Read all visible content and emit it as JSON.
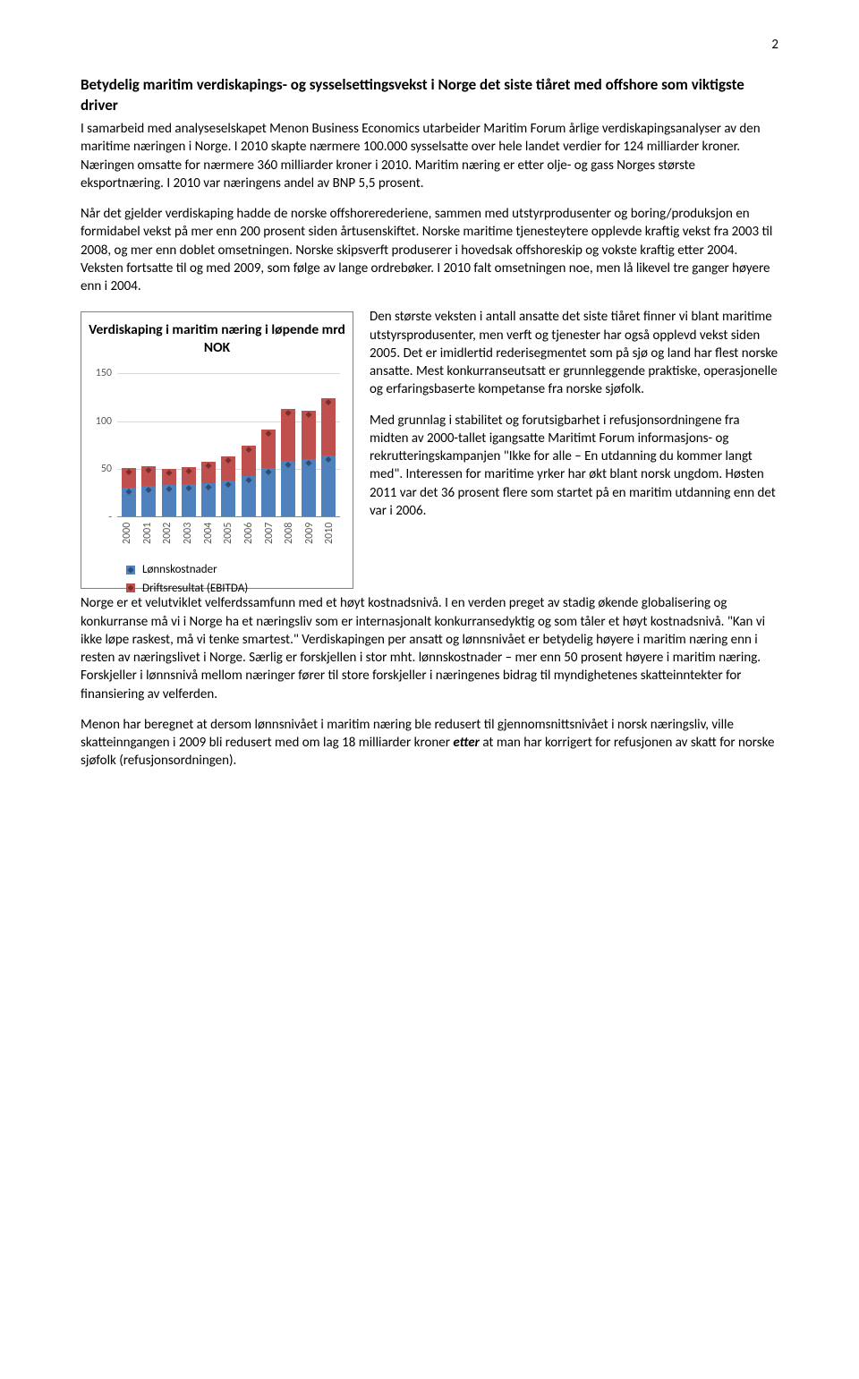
{
  "page_number": "2",
  "heading": "Betydelig maritim verdiskapings- og sysselsettingsvekst i Norge det siste tiåret med offshore som viktigste driver",
  "paragraphs": {
    "p1": "I samarbeid med analyseselskapet Menon Business Economics utarbeider Maritim Forum årlige verdiskapingsanalyser av den maritime næringen i Norge. I 2010 skapte nærmere 100.000 sysselsatte over hele landet verdier for 124 milliarder kroner. Næringen omsatte for nærmere 360 milliarder kroner i 2010. Maritim næring er etter olje- og gass Norges største eksportnæring. I 2010 var næringens andel av BNP 5,5 prosent.",
    "p2": "Når det gjelder verdiskaping hadde de norske offshorerederiene, sammen med utstyrprodusenter og boring/produksjon en formidabel vekst på mer enn 200 prosent siden årtusenskiftet. Norske maritime tjenesteytere opplevde kraftig vekst fra 2003 til 2008, og mer enn doblet omsetningen. Norske skipsverft produserer i hovedsak offshoreskip og vokste kraftig etter 2004. Veksten fortsatte til og med 2009, som følge av lange ordrebøker. I 2010 falt omsetningen noe, men lå likevel tre ganger høyere enn i 2004.",
    "p3a": "Den største veksten i antall ansatte det siste tiåret finner vi blant maritime utstyrsprodusenter, men verft og tjenester har også opplevd vekst siden 2005. Det er imidlertid rederisegmentet som på sjø og land har flest norske ansatte. Mest konkurranseutsatt er grunnleggende praktiske, operasjonelle og erfaringsbaserte kompetanse fra norske sjøfolk.",
    "p3b_part1": "Med grunnlag i stabilitet og forutsigbarhet i refusjonsordningene fra midten av 2000-tallet igangsatte Maritimt Forum informasjons- og rekrutteringskampanjen \"Ikke for alle – En utdanning du kommer langt med\". Interessen for maritime yrker ",
    "p3b_part2": "har økt blant norsk ungdom. Høsten 2011 var det 36 prosent flere som startet på en maritim utdanning enn det var i 2006.",
    "p4": "Norge er et velutviklet velferdssamfunn med et høyt kostnadsnivå. I en verden preget av stadig økende globalisering og konkurranse må vi i Norge ha et næringsliv som er internasjonalt konkurransedyktig og som tåler et høyt kostnadsnivå. \"Kan vi ikke løpe raskest, må vi tenke smartest.\" Verdiskapingen per ansatt og lønnsnivået er betydelig høyere i maritim næring enn i resten av næringslivet i Norge. Særlig er forskjellen i stor mht. lønnskostnader – mer enn 50 prosent høyere i maritim næring. Forskjeller i lønnsnivå mellom næringer fører til store forskjeller i næringenes bidrag til myndighetenes skatteinntekter for finansiering av velferden.",
    "p5": "Menon har beregnet at dersom lønnsnivået i maritim næring ble redusert til gjennomsnittsnivået i norsk næringsliv, ville skatteinngangen i 2009 bli redusert med om lag 18 milliarder kroner etter at man har korrigert for refusjonen av skatt for norske sjøfolk (refusjonsordningen).",
    "p5_emph": "etter"
  },
  "chart": {
    "title": "Verdiskaping i maritim næring i løpende mrd NOK",
    "y_ticks": [
      "-",
      "50",
      "100",
      "150"
    ],
    "y_max": 160,
    "categories": [
      "2000",
      "2001",
      "2002",
      "2003",
      "2004",
      "2005",
      "2006",
      "2007",
      "2008",
      "2009",
      "2010"
    ],
    "series": [
      {
        "name": "Lønnskostnader",
        "color": "#4f81bd",
        "marker_color": "#2c4d75",
        "values": [
          30,
          32,
          33,
          34,
          35,
          37,
          42,
          50,
          58,
          60,
          63
        ]
      },
      {
        "name": "Driftsresultat (EBITDA)",
        "color": "#c0504d",
        "marker_color": "#7a2e2c",
        "values": [
          20,
          20,
          16,
          17,
          22,
          25,
          32,
          40,
          54,
          50,
          60
        ]
      }
    ],
    "grid_color": "#d9d9d9",
    "axis_color": "#888888",
    "tick_font_color": "#595959"
  }
}
